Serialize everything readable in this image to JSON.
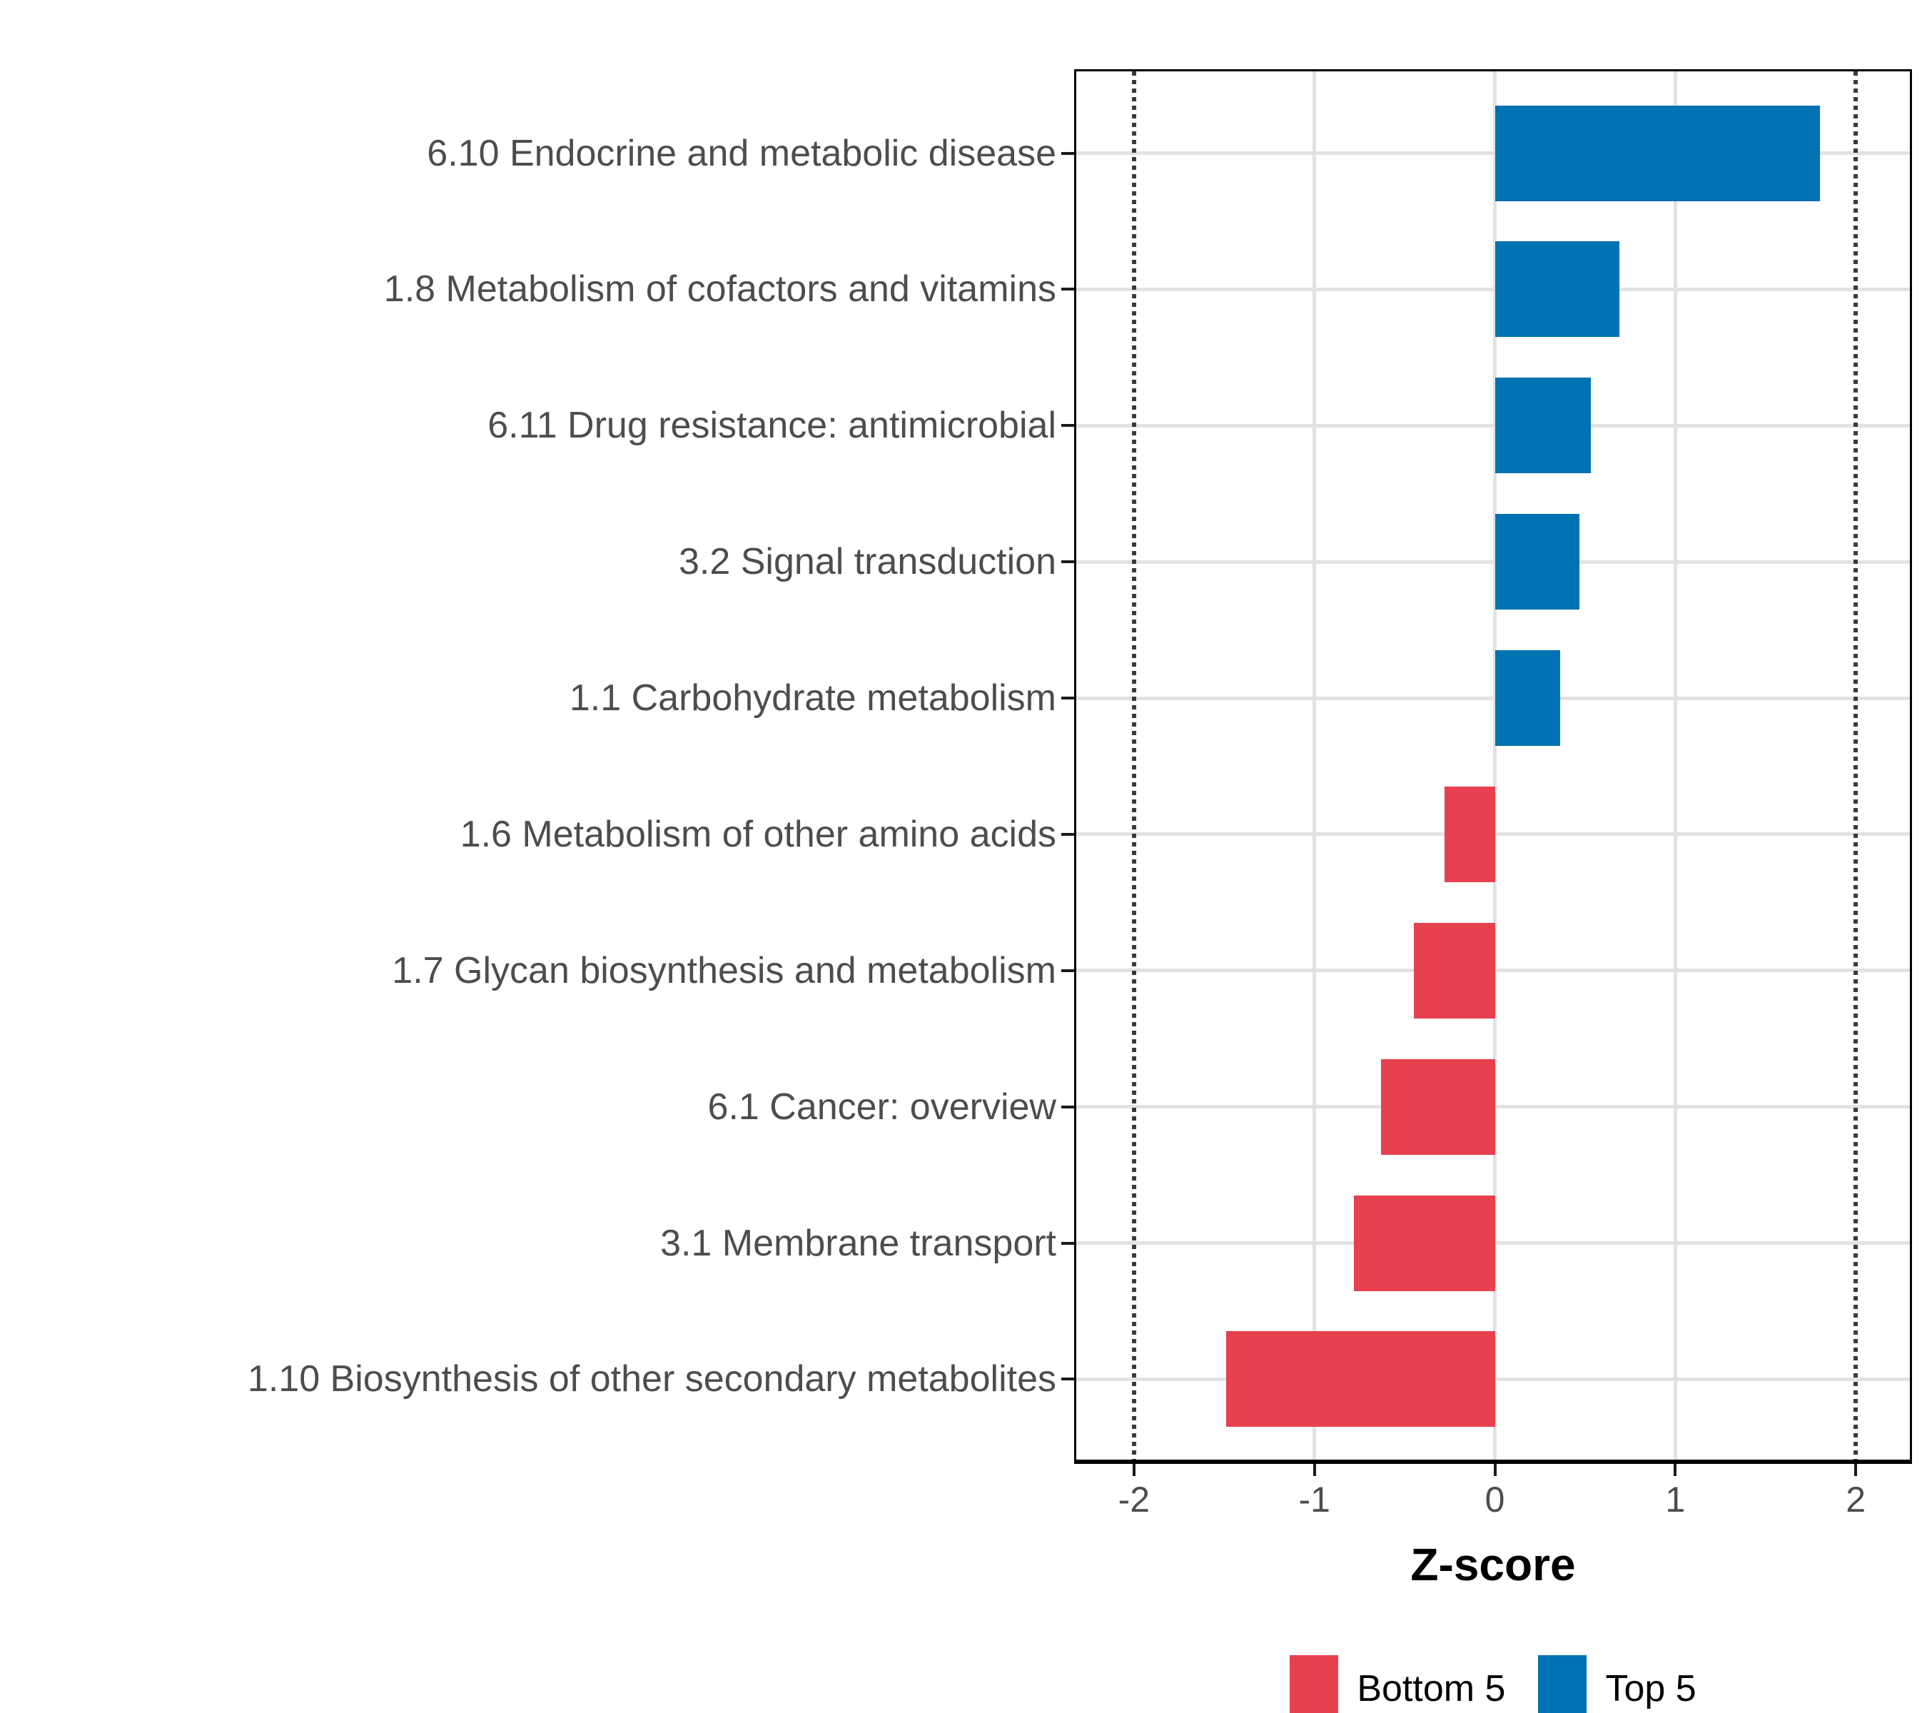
{
  "chart_data": {
    "type": "bar",
    "orientation": "horizontal",
    "title": "",
    "xlabel": "Z-score",
    "ylabel": "",
    "xlim": [
      -2.32,
      2.3
    ],
    "xticks": [
      -2,
      -1,
      0,
      1,
      2
    ],
    "xtick_labels": [
      "-2",
      "-1",
      "0",
      "1",
      "2"
    ],
    "reference_lines": [
      -2,
      2
    ],
    "grid": true,
    "bar_width_frac": 0.7,
    "categories": [
      "6.10 Endocrine and metabolic disease",
      "1.8 Metabolism of cofactors and vitamins",
      "6.11 Drug resistance: antimicrobial",
      "3.2 Signal transduction",
      "1.1 Carbohydrate metabolism",
      "1.6 Metabolism of other amino acids",
      "1.7 Glycan biosynthesis and metabolism",
      "6.1 Cancer: overview",
      "3.1 Membrane transport",
      "1.10 Biosynthesis of other secondary metabolites"
    ],
    "bars": [
      {
        "label": "6.10 Endocrine and metabolic disease",
        "value": 1.8,
        "group": "Top 5"
      },
      {
        "label": "1.8 Metabolism of cofactors and vitamins",
        "value": 0.69,
        "group": "Top 5"
      },
      {
        "label": "6.11 Drug resistance: antimicrobial",
        "value": 0.53,
        "group": "Top 5"
      },
      {
        "label": "3.2 Signal transduction",
        "value": 0.47,
        "group": "Top 5"
      },
      {
        "label": "1.1 Carbohydrate metabolism",
        "value": 0.36,
        "group": "Top 5"
      },
      {
        "label": "1.6 Metabolism of other amino acids",
        "value": -0.28,
        "group": "Bottom 5"
      },
      {
        "label": "1.7 Glycan biosynthesis and metabolism",
        "value": -0.45,
        "group": "Bottom 5"
      },
      {
        "label": "6.1 Cancer: overview",
        "value": -0.63,
        "group": "Bottom 5"
      },
      {
        "label": "3.1 Membrane transport",
        "value": -0.78,
        "group": "Bottom 5"
      },
      {
        "label": "1.10 Biosynthesis of other secondary metabolites",
        "value": -1.49,
        "group": "Bottom 5"
      }
    ],
    "legend": {
      "position": "bottom",
      "entries": [
        {
          "label": "Bottom 5",
          "color": "#E7404E"
        },
        {
          "label": "Top 5",
          "color": "#0072B2"
        }
      ]
    },
    "colors": {
      "Bottom 5": "#E7404E",
      "Top 5": "#0072B2",
      "grid": "#E2E2E2",
      "reference_line": "#3B3B3B",
      "axis_text": "#4D4D4D",
      "panel_border": "#000000"
    }
  }
}
